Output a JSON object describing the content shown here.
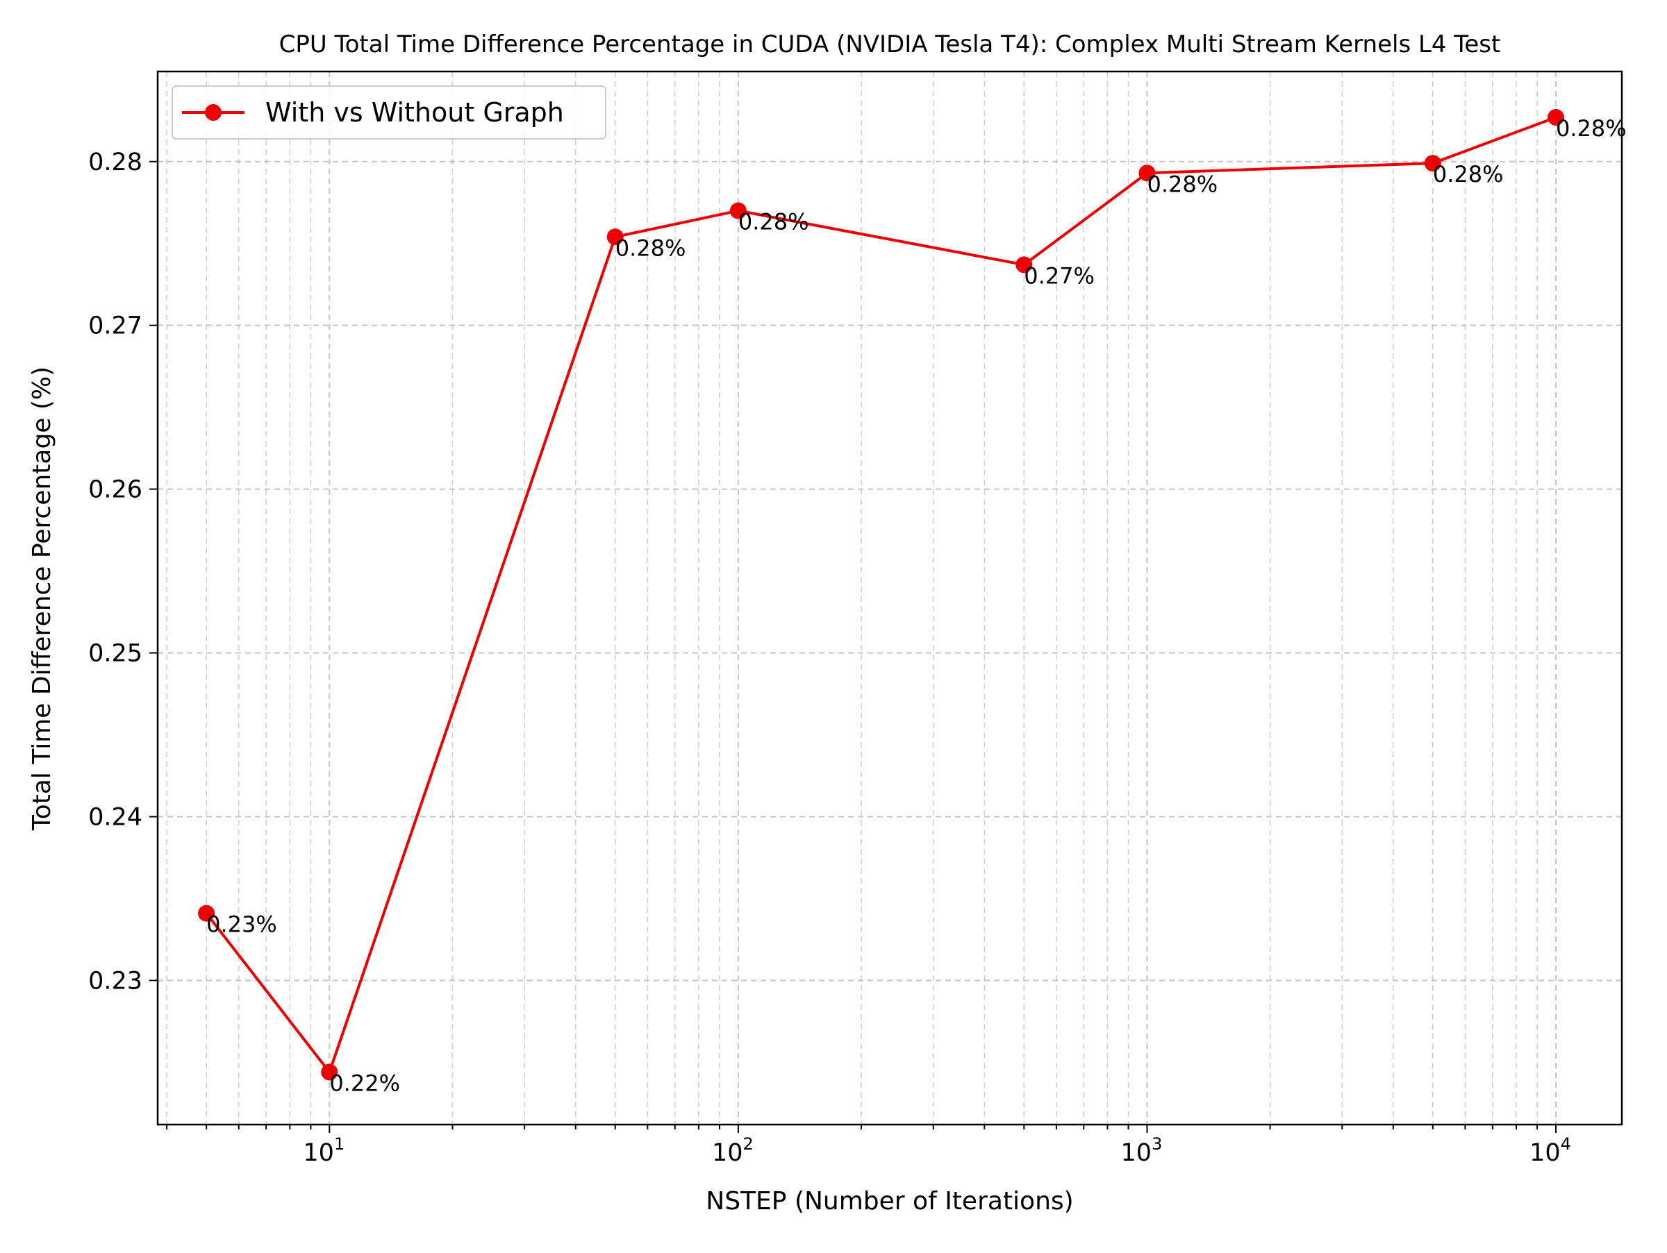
{
  "chart_data": {
    "type": "line",
    "title": "CPU Total Time Difference Percentage in CUDA (NVIDIA Tesla T4): Complex Multi Stream Kernels L4 Test",
    "xlabel": "NSTEP (Number of Iterations)",
    "ylabel": "Total Time Difference Percentage (%)",
    "xscale": "log",
    "xlim": [
      3.8,
      14500
    ],
    "ylim": [
      0.2212,
      0.2855
    ],
    "grid": true,
    "legend_position": "top-left",
    "x_ticks": [
      {
        "value": 10,
        "base": "10",
        "exp": "1"
      },
      {
        "value": 100,
        "base": "10",
        "exp": "2"
      },
      {
        "value": 1000,
        "base": "10",
        "exp": "3"
      },
      {
        "value": 10000,
        "base": "10",
        "exp": "4"
      }
    ],
    "y_ticks": [
      {
        "value": 0.23,
        "label": "0.23"
      },
      {
        "value": 0.24,
        "label": "0.24"
      },
      {
        "value": 0.25,
        "label": "0.25"
      },
      {
        "value": 0.26,
        "label": "0.26"
      },
      {
        "value": 0.27,
        "label": "0.27"
      },
      {
        "value": 0.28,
        "label": "0.28"
      }
    ],
    "series": [
      {
        "name": "With vs Without Graph",
        "color": "#ee0000",
        "x": [
          5,
          10,
          50,
          100,
          500,
          1000,
          5000,
          10000
        ],
        "y": [
          0.2341,
          0.2244,
          0.2754,
          0.277,
          0.2737,
          0.2793,
          0.2799,
          0.2827
        ],
        "labels": [
          "0.23%",
          "0.22%",
          "0.28%",
          "0.28%",
          "0.27%",
          "0.28%",
          "0.28%",
          "0.28%"
        ]
      }
    ]
  }
}
